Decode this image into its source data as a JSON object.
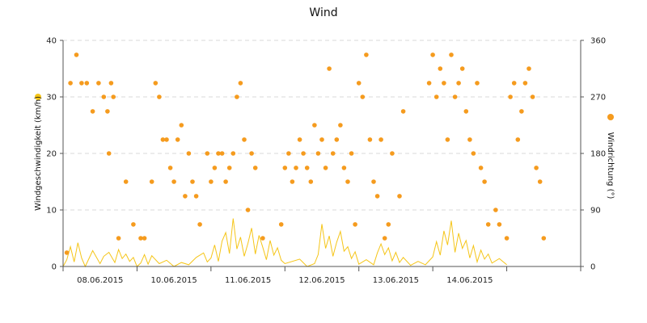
{
  "chart_data": {
    "type": "line",
    "title": "Wind",
    "x_categories": [
      "08.06.2015",
      "10.06.2015",
      "11.06.2015",
      "12.06.2015",
      "13.06.2015",
      "14.06.2015"
    ],
    "x_range_days": [
      0,
      7
    ],
    "y_left": {
      "label": "Windgeschwindigkeit (km/h)",
      "min": 0,
      "max": 40,
      "ticks": [
        0,
        10,
        20,
        30,
        40
      ]
    },
    "y_right": {
      "label": "Windrichtung (°)",
      "min": 0,
      "max": 360,
      "ticks": [
        0,
        90,
        180,
        270,
        360
      ]
    },
    "grid": {
      "y": true,
      "x": false,
      "style": "dashed"
    },
    "legend": "beside-axes",
    "series": [
      {
        "name": "Windgeschwindigkeit (km/h)",
        "axis": "left",
        "kind": "line",
        "color": "#f5c518",
        "points": [
          [
            0.0,
            0
          ],
          [
            0.05,
            1.2
          ],
          [
            0.1,
            3.5
          ],
          [
            0.15,
            0.8
          ],
          [
            0.2,
            4.2
          ],
          [
            0.25,
            1.5
          ],
          [
            0.3,
            0
          ],
          [
            0.4,
            2.8
          ],
          [
            0.5,
            0.5
          ],
          [
            0.55,
            1.8
          ],
          [
            0.62,
            2.5
          ],
          [
            0.7,
            0.7
          ],
          [
            0.75,
            3.0
          ],
          [
            0.8,
            1.4
          ],
          [
            0.85,
            2.2
          ],
          [
            0.9,
            0.9
          ],
          [
            0.95,
            1.6
          ],
          [
            1.0,
            0
          ],
          [
            1.05,
            0.6
          ],
          [
            1.1,
            2.1
          ],
          [
            1.15,
            0.4
          ],
          [
            1.2,
            1.9
          ],
          [
            1.3,
            0.5
          ],
          [
            1.4,
            1.1
          ],
          [
            1.5,
            0
          ],
          [
            1.6,
            0.7
          ],
          [
            1.7,
            0.3
          ],
          [
            1.8,
            1.6
          ],
          [
            1.9,
            2.4
          ],
          [
            1.95,
            0.8
          ],
          [
            2.0,
            1.5
          ],
          [
            2.05,
            3.8
          ],
          [
            2.1,
            0.9
          ],
          [
            2.15,
            4.5
          ],
          [
            2.2,
            6.0
          ],
          [
            2.25,
            2.3
          ],
          [
            2.3,
            8.5
          ],
          [
            2.35,
            3.1
          ],
          [
            2.4,
            5.2
          ],
          [
            2.45,
            1.8
          ],
          [
            2.5,
            4.1
          ],
          [
            2.55,
            6.8
          ],
          [
            2.6,
            2.2
          ],
          [
            2.65,
            5.5
          ],
          [
            2.7,
            3.4
          ],
          [
            2.75,
            1.2
          ],
          [
            2.8,
            4.6
          ],
          [
            2.85,
            2.0
          ],
          [
            2.9,
            3.3
          ],
          [
            2.95,
            1.1
          ],
          [
            3.0,
            0.5
          ],
          [
            3.2,
            1.3
          ],
          [
            3.3,
            0
          ],
          [
            3.4,
            0.5
          ],
          [
            3.45,
            2.1
          ],
          [
            3.5,
            7.5
          ],
          [
            3.55,
            3.2
          ],
          [
            3.6,
            5.4
          ],
          [
            3.65,
            1.8
          ],
          [
            3.7,
            4.3
          ],
          [
            3.75,
            6.2
          ],
          [
            3.8,
            2.7
          ],
          [
            3.85,
            3.5
          ],
          [
            3.9,
            1.4
          ],
          [
            3.95,
            2.6
          ],
          [
            4.0,
            0.4
          ],
          [
            4.1,
            1.2
          ],
          [
            4.2,
            0.3
          ],
          [
            4.25,
            2.4
          ],
          [
            4.3,
            4.0
          ],
          [
            4.35,
            2.1
          ],
          [
            4.4,
            3.3
          ],
          [
            4.45,
            1.0
          ],
          [
            4.5,
            2.5
          ],
          [
            4.55,
            0.7
          ],
          [
            4.6,
            1.6
          ],
          [
            4.7,
            0.2
          ],
          [
            4.8,
            0.9
          ],
          [
            4.9,
            0.3
          ],
          [
            5.0,
            1.7
          ],
          [
            5.05,
            4.4
          ],
          [
            5.1,
            2.0
          ],
          [
            5.15,
            6.3
          ],
          [
            5.2,
            3.8
          ],
          [
            5.25,
            8.1
          ],
          [
            5.3,
            2.5
          ],
          [
            5.35,
            5.9
          ],
          [
            5.4,
            3.2
          ],
          [
            5.45,
            4.6
          ],
          [
            5.5,
            1.5
          ],
          [
            5.55,
            3.7
          ],
          [
            5.6,
            0.8
          ],
          [
            5.65,
            2.9
          ],
          [
            5.7,
            1.3
          ],
          [
            5.75,
            2.2
          ],
          [
            5.8,
            0.6
          ],
          [
            5.9,
            1.4
          ],
          [
            6.0,
            0.3
          ]
        ]
      },
      {
        "name": "Windrichtung (°)",
        "axis": "right",
        "kind": "scatter",
        "color": "#f59b1e",
        "points": [
          [
            0.05,
            22
          ],
          [
            0.1,
            292
          ],
          [
            0.18,
            337
          ],
          [
            0.25,
            292
          ],
          [
            0.32,
            292
          ],
          [
            0.4,
            247
          ],
          [
            0.48,
            292
          ],
          [
            0.55,
            270
          ],
          [
            0.6,
            247
          ],
          [
            0.62,
            180
          ],
          [
            0.65,
            292
          ],
          [
            0.68,
            270
          ],
          [
            0.75,
            45
          ],
          [
            0.85,
            135
          ],
          [
            0.95,
            67
          ],
          [
            1.05,
            45
          ],
          [
            1.1,
            45
          ],
          [
            1.2,
            135
          ],
          [
            1.25,
            292
          ],
          [
            1.3,
            270
          ],
          [
            1.35,
            202
          ],
          [
            1.4,
            202
          ],
          [
            1.45,
            157
          ],
          [
            1.5,
            135
          ],
          [
            1.55,
            202
          ],
          [
            1.6,
            225
          ],
          [
            1.65,
            112
          ],
          [
            1.7,
            180
          ],
          [
            1.75,
            135
          ],
          [
            1.8,
            112
          ],
          [
            1.85,
            67
          ],
          [
            1.95,
            180
          ],
          [
            2.0,
            135
          ],
          [
            2.05,
            157
          ],
          [
            2.1,
            180
          ],
          [
            2.15,
            180
          ],
          [
            2.2,
            135
          ],
          [
            2.25,
            157
          ],
          [
            2.3,
            180
          ],
          [
            2.35,
            270
          ],
          [
            2.4,
            292
          ],
          [
            2.45,
            202
          ],
          [
            2.5,
            90
          ],
          [
            2.55,
            180
          ],
          [
            2.6,
            157
          ],
          [
            2.7,
            45
          ],
          [
            2.95,
            67
          ],
          [
            3.0,
            157
          ],
          [
            3.05,
            180
          ],
          [
            3.1,
            135
          ],
          [
            3.15,
            157
          ],
          [
            3.2,
            202
          ],
          [
            3.25,
            180
          ],
          [
            3.3,
            157
          ],
          [
            3.35,
            135
          ],
          [
            3.4,
            225
          ],
          [
            3.45,
            180
          ],
          [
            3.5,
            202
          ],
          [
            3.55,
            157
          ],
          [
            3.6,
            315
          ],
          [
            3.65,
            180
          ],
          [
            3.7,
            202
          ],
          [
            3.75,
            225
          ],
          [
            3.8,
            157
          ],
          [
            3.85,
            135
          ],
          [
            3.9,
            180
          ],
          [
            3.95,
            67
          ],
          [
            4.0,
            292
          ],
          [
            4.05,
            270
          ],
          [
            4.1,
            337
          ],
          [
            4.15,
            202
          ],
          [
            4.2,
            135
          ],
          [
            4.25,
            112
          ],
          [
            4.3,
            202
          ],
          [
            4.35,
            45
          ],
          [
            4.4,
            67
          ],
          [
            4.45,
            180
          ],
          [
            4.55,
            112
          ],
          [
            4.6,
            247
          ],
          [
            4.95,
            292
          ],
          [
            5.0,
            337
          ],
          [
            5.05,
            270
          ],
          [
            5.1,
            315
          ],
          [
            5.15,
            292
          ],
          [
            5.2,
            202
          ],
          [
            5.25,
            337
          ],
          [
            5.3,
            270
          ],
          [
            5.35,
            292
          ],
          [
            5.4,
            315
          ],
          [
            5.45,
            247
          ],
          [
            5.5,
            202
          ],
          [
            5.55,
            180
          ],
          [
            5.6,
            292
          ],
          [
            5.65,
            157
          ],
          [
            5.7,
            135
          ],
          [
            5.75,
            67
          ],
          [
            5.85,
            90
          ],
          [
            5.9,
            67
          ],
          [
            6.0,
            45
          ],
          [
            6.05,
            270
          ],
          [
            6.1,
            292
          ],
          [
            6.15,
            202
          ],
          [
            6.2,
            247
          ],
          [
            6.25,
            292
          ],
          [
            6.3,
            315
          ],
          [
            6.35,
            270
          ],
          [
            6.4,
            157
          ],
          [
            6.45,
            135
          ],
          [
            6.5,
            45
          ]
        ]
      }
    ]
  }
}
